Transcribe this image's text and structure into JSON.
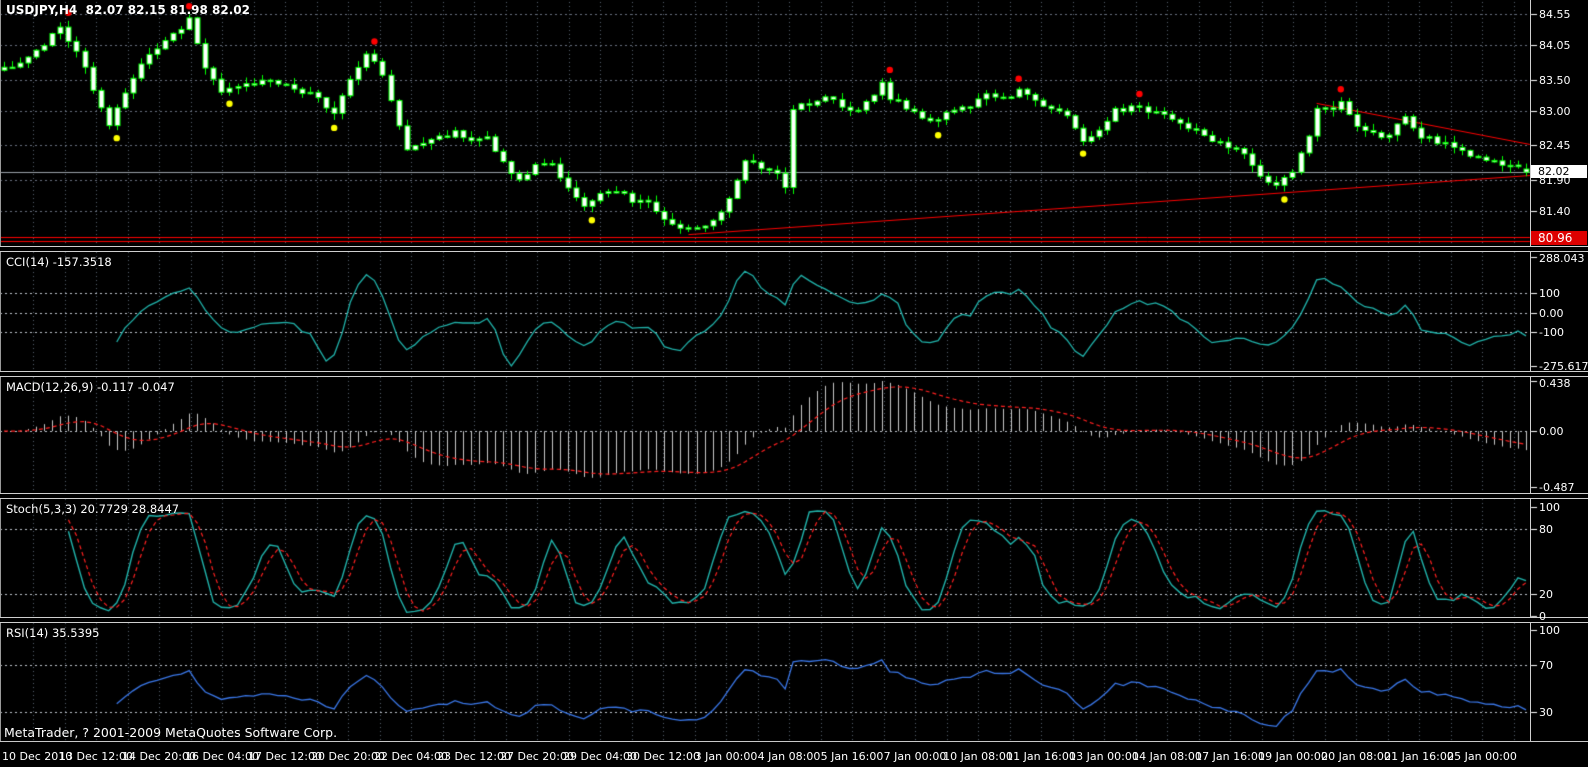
{
  "app": {
    "name": "MetaTrader"
  },
  "copyright_text": "MetaTrader, ? 2001-2009 MetaQuotes Software Corp.",
  "chart_header": {
    "symbol_period": "USDJPY,H4",
    "quote_ohlc": "82.07 82.15 81.98 82.02",
    "title": "USDJPY,H4  82.07 82.15 81.98 82.02"
  },
  "price_boxes": {
    "current": "82.02",
    "support": "80.96"
  },
  "colors": {
    "background": "#000000",
    "candle_outline": "#00FF00",
    "candle_body": "#FFFFFF",
    "grid_vertical": "#57616f",
    "grid_main_horizontal": "#6a7280",
    "grid_level_horizontal": "#c0c6cf",
    "trendline": "#FF0000",
    "current_price_line": "#9aa0a8",
    "cci_line": "#20B2AA",
    "macd_histogram": "#C8C8C8",
    "macd_signal": "#FF2020",
    "stoch_main": "#20B2AA",
    "stoch_signal": "#FF2020",
    "rsi_line": "#3A77E8",
    "dot_above_high": "#FF0000",
    "dot_below_low": "#FFFF00"
  },
  "axes": {
    "main": [
      {
        "text": "84.55",
        "value": 84.55
      },
      {
        "text": "84.05",
        "value": 84.05
      },
      {
        "text": "83.50",
        "value": 83.5
      },
      {
        "text": "83.00",
        "value": 83.0
      },
      {
        "text": "82.45",
        "value": 82.45
      },
      {
        "text": "81.90",
        "value": 81.9
      },
      {
        "text": "81.40",
        "value": 81.4
      }
    ],
    "cci": [
      {
        "text": "288.043",
        "value": 288.043
      },
      {
        "text": "100",
        "value": 100
      },
      {
        "text": "0.00",
        "value": 0
      },
      {
        "text": "-100",
        "value": -100
      },
      {
        "text": "-275.617",
        "value": -275.617
      }
    ],
    "macd": [
      {
        "text": "0.438",
        "value": 0.438
      },
      {
        "text": "0.00",
        "value": 0
      },
      {
        "text": "-0.487",
        "value": -0.487
      }
    ],
    "stoch": [
      {
        "text": "100",
        "value": 100
      },
      {
        "text": "80",
        "value": 80
      },
      {
        "text": "20",
        "value": 20
      },
      {
        "text": "0",
        "value": 0
      }
    ],
    "rsi": [
      {
        "text": "100",
        "value": 100
      },
      {
        "text": "70",
        "value": 70
      },
      {
        "text": "30",
        "value": 30
      },
      {
        "text": "0",
        "value": 0
      }
    ]
  },
  "time_axis": {
    "labels": [
      "10 Dec 2010",
      "13 Dec 12:00",
      "14 Dec 20:00",
      "16 Dec 04:00",
      "17 Dec 12:00",
      "20 Dec 20:00",
      "22 Dec 04:00",
      "23 Dec 12:00",
      "27 Dec 20:00",
      "29 Dec 04:00",
      "30 Dec 12:00",
      "3 Jan 00:00",
      "4 Jan 08:00",
      "5 Jan 16:00",
      "7 Jan 00:00",
      "10 Jan 08:00",
      "11 Jan 16:00",
      "13 Jan 00:00",
      "14 Jan 08:00",
      "17 Jan 16:00",
      "19 Jan 00:00",
      "20 Jan 08:00",
      "21 Jan 16:00",
      "25 Jan 00:00"
    ]
  },
  "chart_data": {
    "type": "candlestick",
    "symbol": "USDJPY",
    "timeframe": "H4",
    "last_quote": {
      "open": 82.07,
      "high": 82.15,
      "low": 81.98,
      "close": 82.02
    },
    "price_axis_ticks": [
      84.55,
      84.05,
      83.5,
      83.0,
      82.45,
      81.9,
      81.4
    ],
    "marked_levels": {
      "current_price": 82.02,
      "support_level": 80.96
    },
    "bars": 190,
    "price_path_anchors": [
      [
        0,
        83.65
      ],
      [
        4,
        83.95
      ],
      [
        7,
        84.32
      ],
      [
        9,
        83.95
      ],
      [
        11,
        83.35
      ],
      [
        13,
        82.75
      ],
      [
        15,
        83.3
      ],
      [
        18,
        83.95
      ],
      [
        21,
        84.2
      ],
      [
        23,
        84.45
      ],
      [
        25,
        83.65
      ],
      [
        27,
        83.3
      ],
      [
        30,
        83.42
      ],
      [
        33,
        83.5
      ],
      [
        36,
        83.35
      ],
      [
        39,
        83.22
      ],
      [
        41,
        82.95
      ],
      [
        43,
        83.5
      ],
      [
        45,
        83.92
      ],
      [
        47,
        83.6
      ],
      [
        50,
        82.4
      ],
      [
        53,
        82.55
      ],
      [
        56,
        82.65
      ],
      [
        58,
        82.5
      ],
      [
        60,
        82.55
      ],
      [
        62,
        82.15
      ],
      [
        64,
        81.9
      ],
      [
        66,
        82.1
      ],
      [
        68,
        82.15
      ],
      [
        70,
        81.8
      ],
      [
        72,
        81.45
      ],
      [
        74,
        81.65
      ],
      [
        76,
        81.75
      ],
      [
        78,
        81.55
      ],
      [
        80,
        81.55
      ],
      [
        82,
        81.3
      ],
      [
        84,
        81.1
      ],
      [
        86,
        81.15
      ],
      [
        88,
        81.25
      ],
      [
        90,
        81.55
      ],
      [
        92,
        82.2
      ],
      [
        94,
        82.1
      ],
      [
        96,
        82.0
      ],
      [
        97,
        81.75
      ],
      [
        98,
        83.05
      ],
      [
        100,
        83.1
      ],
      [
        102,
        83.25
      ],
      [
        104,
        83.05
      ],
      [
        106,
        83.0
      ],
      [
        108,
        83.3
      ],
      [
        109,
        83.5
      ],
      [
        110,
        83.2
      ],
      [
        112,
        83.05
      ],
      [
        114,
        82.85
      ],
      [
        116,
        82.9
      ],
      [
        118,
        83.05
      ],
      [
        120,
        83.1
      ],
      [
        122,
        83.25
      ],
      [
        124,
        83.2
      ],
      [
        126,
        83.3
      ],
      [
        128,
        83.15
      ],
      [
        130,
        83.05
      ],
      [
        132,
        82.9
      ],
      [
        134,
        82.5
      ],
      [
        136,
        82.7
      ],
      [
        138,
        83.0
      ],
      [
        140,
        83.05
      ],
      [
        141,
        83.1
      ],
      [
        143,
        82.95
      ],
      [
        146,
        82.8
      ],
      [
        148,
        82.7
      ],
      [
        150,
        82.55
      ],
      [
        152,
        82.45
      ],
      [
        154,
        82.3
      ],
      [
        156,
        81.95
      ],
      [
        158,
        81.85
      ],
      [
        160,
        82.0
      ],
      [
        162,
        82.6
      ],
      [
        163,
        83.0
      ],
      [
        165,
        83.05
      ],
      [
        166,
        83.1
      ],
      [
        168,
        82.8
      ],
      [
        170,
        82.65
      ],
      [
        171,
        82.55
      ],
      [
        173,
        82.75
      ],
      [
        174,
        82.95
      ],
      [
        176,
        82.6
      ],
      [
        178,
        82.5
      ],
      [
        180,
        82.4
      ],
      [
        182,
        82.3
      ],
      [
        184,
        82.25
      ],
      [
        186,
        82.15
      ],
      [
        188,
        82.1
      ],
      [
        189,
        82.02
      ]
    ],
    "indicators": [
      {
        "name": "CCI",
        "params": [
          14
        ],
        "display": "CCI(14) -157.3518",
        "last": -157.3518,
        "range": [
          -275.617,
          288.043
        ],
        "levels": [
          100,
          0,
          -100
        ],
        "color": "#20B2AA"
      },
      {
        "name": "MACD",
        "params": [
          12,
          26,
          9
        ],
        "display": "MACD(12,26,9) -0.117 -0.047",
        "last_main": -0.117,
        "last_signal": -0.047,
        "range": [
          -0.487,
          0.438
        ],
        "levels": [
          0
        ],
        "histogram_color": "#C8C8C8",
        "signal_color": "#FF2020"
      },
      {
        "name": "Stochastic",
        "params": [
          5,
          3,
          3
        ],
        "display": "Stoch(5,3,3) 20.7729 28.8447",
        "last_main": 20.7729,
        "last_signal": 28.8447,
        "levels": [
          80,
          20
        ],
        "main_color": "#20B2AA",
        "signal_color": "#FF2020"
      },
      {
        "name": "RSI",
        "params": [
          14
        ],
        "display": "RSI(14) 35.5395",
        "last": 35.5395,
        "levels": [
          70,
          30
        ],
        "color": "#3A77E8"
      }
    ],
    "overlays": {
      "trendlines": [
        {
          "kind": "descending-resistance",
          "points_bar_price": [
            [
              163,
              83.12
            ],
            [
              190,
              82.45
            ]
          ]
        },
        {
          "kind": "ascending-support",
          "points_bar_price": [
            [
              85,
              81.02
            ],
            [
              190,
              81.97
            ]
          ]
        }
      ],
      "horizontal_lines": [
        80.99,
        80.92
      ],
      "signal_dots": {
        "above_highs_color": "#FF0000",
        "below_lows_color": "#FFFF00"
      }
    }
  }
}
